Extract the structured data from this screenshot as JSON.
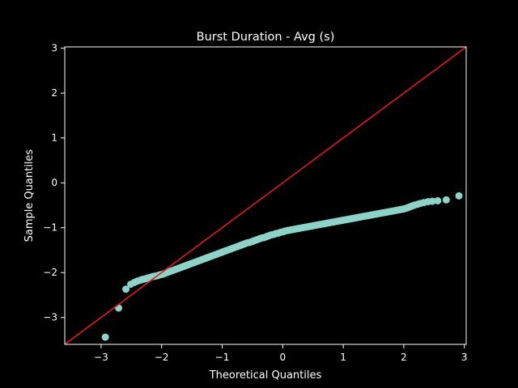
{
  "chart_data": {
    "type": "scatter",
    "title": "Burst Duration - Avg (s)",
    "xlabel": "Theoretical Quantiles",
    "ylabel": "Sample Quantiles",
    "xlim": [
      -3.6,
      3.03
    ],
    "ylim": [
      -3.6,
      3.03
    ],
    "xticks": [
      -3,
      -2,
      -1,
      0,
      1,
      2,
      3
    ],
    "yticks": [
      -3,
      -2,
      -1,
      0,
      1,
      2,
      3
    ],
    "grid": false,
    "colors": {
      "background": "#000000",
      "points": "#8dd3c7",
      "reference_line": "#e41a1c",
      "axes": "#ffffff"
    },
    "reference_line": {
      "x": [
        -3.6,
        3.03
      ],
      "y": [
        -3.6,
        3.03
      ]
    },
    "series": [
      {
        "x": [
          -2.93,
          -2.71,
          -2.59,
          -2.51,
          -2.45,
          -2.4,
          -2.35,
          -2.31,
          -2.27,
          -2.23,
          -2.19,
          -2.15,
          -2.11,
          -2.07,
          -2.03,
          -1.99,
          -1.95,
          -1.91,
          -1.87,
          -1.83,
          -1.79,
          -1.75,
          -1.71,
          -1.67,
          -1.63,
          -1.59,
          -1.55,
          -1.51,
          -1.47,
          -1.43,
          -1.39,
          -1.35,
          -1.31,
          -1.27,
          -1.23,
          -1.19,
          -1.15,
          -1.11,
          -1.07,
          -1.03,
          -0.99,
          -0.95,
          -0.91,
          -0.87,
          -0.83,
          -0.79,
          -0.75,
          -0.71,
          -0.67,
          -0.63,
          -0.59,
          -0.55,
          -0.51,
          -0.47,
          -0.43,
          -0.39,
          -0.35,
          -0.31,
          -0.27,
          -0.23,
          -0.19,
          -0.15,
          -0.11,
          -0.07,
          -0.03,
          0.01,
          0.05,
          0.09,
          0.13,
          0.17,
          0.21,
          0.25,
          0.29,
          0.33,
          0.37,
          0.41,
          0.45,
          0.49,
          0.53,
          0.57,
          0.61,
          0.65,
          0.69,
          0.73,
          0.77,
          0.81,
          0.85,
          0.89,
          0.93,
          0.97,
          1.01,
          1.05,
          1.09,
          1.13,
          1.17,
          1.21,
          1.25,
          1.29,
          1.33,
          1.37,
          1.41,
          1.45,
          1.49,
          1.53,
          1.57,
          1.61,
          1.65,
          1.69,
          1.73,
          1.77,
          1.81,
          1.85,
          1.89,
          1.93,
          1.97,
          2.01,
          2.05,
          2.09,
          2.13,
          2.17,
          2.22,
          2.27,
          2.33,
          2.4,
          2.47,
          2.56,
          2.7,
          2.91
        ],
        "y": [
          -3.44,
          -2.79,
          -2.37,
          -2.26,
          -2.22,
          -2.19,
          -2.17,
          -2.15,
          -2.14,
          -2.12,
          -2.11,
          -2.09,
          -2.08,
          -2.07,
          -2.05,
          -2.04,
          -2.02,
          -2.0,
          -1.98,
          -1.96,
          -1.94,
          -1.92,
          -1.9,
          -1.88,
          -1.86,
          -1.84,
          -1.82,
          -1.8,
          -1.78,
          -1.76,
          -1.74,
          -1.72,
          -1.7,
          -1.68,
          -1.66,
          -1.64,
          -1.62,
          -1.6,
          -1.58,
          -1.56,
          -1.54,
          -1.52,
          -1.5,
          -1.48,
          -1.46,
          -1.44,
          -1.42,
          -1.4,
          -1.38,
          -1.36,
          -1.34,
          -1.33,
          -1.31,
          -1.29,
          -1.27,
          -1.25,
          -1.23,
          -1.22,
          -1.2,
          -1.18,
          -1.16,
          -1.15,
          -1.13,
          -1.12,
          -1.1,
          -1.09,
          -1.07,
          -1.06,
          -1.05,
          -1.04,
          -1.03,
          -1.02,
          -1.01,
          -1.0,
          -0.99,
          -0.98,
          -0.97,
          -0.96,
          -0.95,
          -0.94,
          -0.93,
          -0.92,
          -0.91,
          -0.9,
          -0.89,
          -0.88,
          -0.87,
          -0.86,
          -0.85,
          -0.84,
          -0.83,
          -0.82,
          -0.81,
          -0.8,
          -0.79,
          -0.78,
          -0.77,
          -0.76,
          -0.75,
          -0.74,
          -0.73,
          -0.72,
          -0.71,
          -0.7,
          -0.69,
          -0.68,
          -0.67,
          -0.66,
          -0.65,
          -0.64,
          -0.63,
          -0.62,
          -0.61,
          -0.6,
          -0.59,
          -0.58,
          -0.56,
          -0.54,
          -0.52,
          -0.5,
          -0.48,
          -0.46,
          -0.44,
          -0.42,
          -0.41,
          -0.4,
          -0.38,
          -0.29
        ]
      }
    ]
  }
}
